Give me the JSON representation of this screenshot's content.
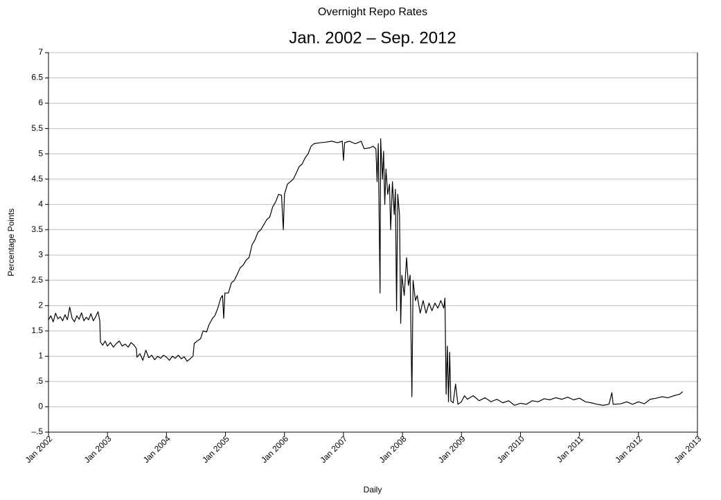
{
  "chart_data": {
    "type": "line",
    "title": "Overnight Repo Rates",
    "subtitle": "Jan. 2002 – Sep. 2012",
    "ylabel": "Percentage Points",
    "xlabel": "Daily",
    "color": "#000000",
    "grid": true,
    "xlim": [
      2002,
      2013
    ],
    "xticks": [
      {
        "value": 2002,
        "label": "Jan 2002"
      },
      {
        "value": 2003,
        "label": "Jan 2003"
      },
      {
        "value": 2004,
        "label": "Jan 2004"
      },
      {
        "value": 2005,
        "label": "Jan 2005"
      },
      {
        "value": 2006,
        "label": "Jan 2006"
      },
      {
        "value": 2007,
        "label": "Jan 2007"
      },
      {
        "value": 2008,
        "label": "Jan 2008"
      },
      {
        "value": 2009,
        "label": "Jan 2009"
      },
      {
        "value": 2010,
        "label": "Jan 2010"
      },
      {
        "value": 2011,
        "label": "Jan 2011"
      },
      {
        "value": 2012,
        "label": "Jan 2012"
      },
      {
        "value": 2013,
        "label": "Jan 2013"
      }
    ],
    "ylim": [
      -0.5,
      7
    ],
    "yticks": [
      {
        "value": -0.5,
        "label": "–.5"
      },
      0,
      {
        "value": 0.5,
        "label": ".5"
      },
      1,
      1.5,
      2,
      2.5,
      3,
      3.5,
      4,
      4.5,
      5,
      5.5,
      6,
      6.5,
      7
    ],
    "x": [
      2002.0,
      2002.04,
      2002.08,
      2002.12,
      2002.16,
      2002.2,
      2002.24,
      2002.28,
      2002.32,
      2002.36,
      2002.4,
      2002.44,
      2002.48,
      2002.52,
      2002.56,
      2002.6,
      2002.64,
      2002.68,
      2002.72,
      2002.76,
      2002.8,
      2002.84,
      2002.87,
      2002.88,
      2002.92,
      2002.96,
      2003.0,
      2003.05,
      2003.1,
      2003.15,
      2003.2,
      2003.25,
      2003.3,
      2003.35,
      2003.4,
      2003.45,
      2003.49,
      2003.5,
      2003.55,
      2003.6,
      2003.65,
      2003.7,
      2003.75,
      2003.8,
      2003.85,
      2003.9,
      2003.95,
      2004.0,
      2004.05,
      2004.1,
      2004.15,
      2004.2,
      2004.25,
      2004.3,
      2004.35,
      2004.4,
      2004.45,
      2004.47,
      2004.52,
      2004.58,
      2004.62,
      2004.68,
      2004.72,
      2004.78,
      2004.82,
      2004.87,
      2004.92,
      2004.95,
      2004.97,
      2004.99,
      2005.05,
      2005.1,
      2005.15,
      2005.2,
      2005.25,
      2005.3,
      2005.35,
      2005.4,
      2005.45,
      2005.5,
      2005.55,
      2005.6,
      2005.65,
      2005.7,
      2005.75,
      2005.8,
      2005.85,
      2005.9,
      2005.95,
      2005.98,
      2006.0,
      2006.05,
      2006.1,
      2006.15,
      2006.2,
      2006.25,
      2006.3,
      2006.35,
      2006.4,
      2006.45,
      2006.5,
      2006.6,
      2006.7,
      2006.8,
      2006.9,
      2006.98,
      2007.0,
      2007.02,
      2007.1,
      2007.2,
      2007.3,
      2007.35,
      2007.45,
      2007.5,
      2007.55,
      2007.57,
      2007.59,
      2007.62,
      2007.63,
      2007.66,
      2007.68,
      2007.7,
      2007.72,
      2007.75,
      2007.78,
      2007.8,
      2007.83,
      2007.86,
      2007.88,
      2007.9,
      2007.92,
      2007.95,
      2007.97,
      2007.99,
      2008.03,
      2008.07,
      2008.1,
      2008.13,
      2008.16,
      2008.18,
      2008.22,
      2008.25,
      2008.3,
      2008.35,
      2008.4,
      2008.45,
      2008.5,
      2008.55,
      2008.6,
      2008.65,
      2008.7,
      2008.72,
      2008.74,
      2008.76,
      2008.78,
      2008.8,
      2008.82,
      2008.86,
      2008.9,
      2008.94,
      2009.0,
      2009.05,
      2009.1,
      2009.2,
      2009.3,
      2009.4,
      2009.5,
      2009.6,
      2009.7,
      2009.8,
      2009.9,
      2010.0,
      2010.1,
      2010.2,
      2010.3,
      2010.4,
      2010.5,
      2010.6,
      2010.7,
      2010.8,
      2010.9,
      2011.0,
      2011.1,
      2011.2,
      2011.3,
      2011.4,
      2011.5,
      2011.55,
      2011.57,
      2011.7,
      2011.8,
      2011.9,
      2012.0,
      2012.1,
      2012.2,
      2012.3,
      2012.4,
      2012.5,
      2012.6,
      2012.7,
      2012.75
    ],
    "values": [
      1.72,
      1.8,
      1.68,
      1.85,
      1.74,
      1.78,
      1.7,
      1.82,
      1.72,
      1.97,
      1.75,
      1.68,
      1.8,
      1.73,
      1.86,
      1.7,
      1.77,
      1.72,
      1.84,
      1.7,
      1.78,
      1.88,
      1.7,
      1.28,
      1.22,
      1.3,
      1.2,
      1.27,
      1.18,
      1.25,
      1.3,
      1.2,
      1.24,
      1.18,
      1.27,
      1.22,
      1.15,
      0.98,
      1.05,
      0.92,
      1.12,
      0.97,
      1.02,
      0.93,
      1.0,
      0.96,
      1.02,
      0.98,
      0.92,
      1.0,
      0.96,
      1.02,
      0.95,
      0.99,
      0.9,
      0.95,
      1.0,
      1.25,
      1.3,
      1.35,
      1.5,
      1.48,
      1.62,
      1.75,
      1.8,
      1.95,
      2.15,
      2.2,
      1.75,
      2.25,
      2.25,
      2.45,
      2.5,
      2.62,
      2.75,
      2.8,
      2.9,
      2.95,
      3.2,
      3.3,
      3.45,
      3.5,
      3.6,
      3.7,
      3.75,
      3.95,
      4.05,
      4.2,
      4.18,
      3.5,
      4.2,
      4.4,
      4.45,
      4.5,
      4.62,
      4.75,
      4.8,
      4.92,
      5.0,
      5.15,
      5.2,
      5.22,
      5.23,
      5.25,
      5.22,
      5.25,
      4.87,
      5.22,
      5.25,
      5.2,
      5.25,
      5.1,
      5.12,
      5.15,
      5.1,
      4.45,
      5.2,
      2.25,
      5.3,
      4.5,
      5.05,
      4.0,
      4.7,
      4.2,
      4.4,
      3.5,
      4.45,
      3.8,
      4.3,
      1.9,
      4.2,
      3.8,
      1.65,
      2.6,
      2.2,
      2.95,
      2.4,
      2.6,
      0.2,
      2.5,
      2.1,
      2.2,
      1.85,
      2.1,
      1.85,
      2.05,
      1.9,
      2.05,
      1.95,
      2.1,
      1.95,
      2.15,
      0.25,
      1.2,
      0.1,
      1.08,
      0.12,
      0.08,
      0.45,
      0.05,
      0.1,
      0.22,
      0.15,
      0.22,
      0.12,
      0.18,
      0.1,
      0.15,
      0.08,
      0.12,
      0.03,
      0.07,
      0.05,
      0.12,
      0.1,
      0.16,
      0.14,
      0.18,
      0.15,
      0.19,
      0.14,
      0.17,
      0.1,
      0.08,
      0.05,
      0.03,
      0.05,
      0.28,
      0.05,
      0.06,
      0.1,
      0.05,
      0.1,
      0.06,
      0.15,
      0.17,
      0.2,
      0.18,
      0.22,
      0.25,
      0.3
    ]
  }
}
